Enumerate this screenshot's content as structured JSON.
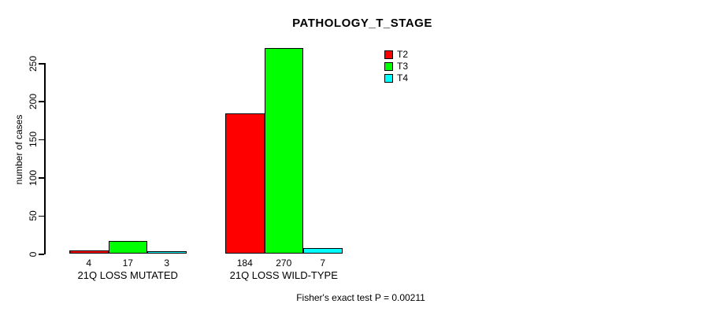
{
  "title": "PATHOLOGY_T_STAGE",
  "ylabel": "number of cases",
  "footnote": "Fisher's exact test P = 0.00211",
  "colors": {
    "background": "#ffffff",
    "axis": "#000000",
    "text": "#000000"
  },
  "chart_data": {
    "type": "bar",
    "title": "PATHOLOGY_T_STAGE",
    "xlabel": "",
    "ylabel": "number of cases",
    "categories": [
      "21Q LOSS MUTATED",
      "21Q LOSS WILD-TYPE"
    ],
    "series": [
      {
        "name": "T2",
        "color": "#ff0000",
        "values": [
          4,
          184
        ]
      },
      {
        "name": "T3",
        "color": "#00ff00",
        "values": [
          17,
          270
        ]
      },
      {
        "name": "T4",
        "color": "#00ffff",
        "values": [
          3,
          7
        ]
      }
    ],
    "value_labels": [
      [
        "4",
        "17",
        "3"
      ],
      [
        "184",
        "270",
        "7"
      ]
    ],
    "yticks": [
      0,
      50,
      100,
      150,
      200,
      250
    ],
    "ylim": [
      0,
      250
    ],
    "grid": false,
    "legend_position": "top-right",
    "bar_border_color": "#000000",
    "annotation": "Fisher's exact test P = 0.00211"
  }
}
